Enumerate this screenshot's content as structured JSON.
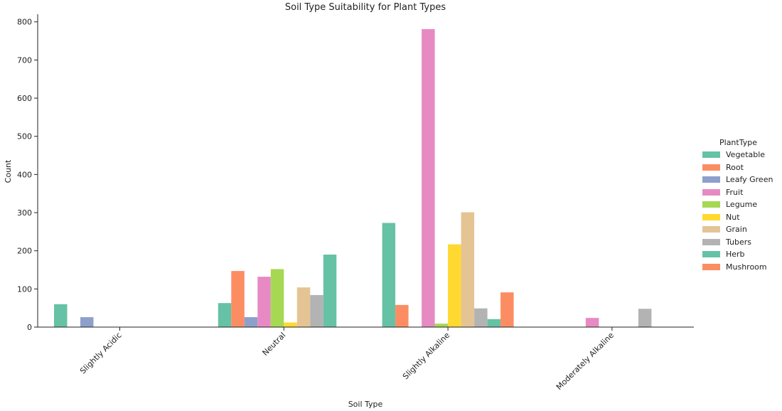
{
  "chart_data": {
    "type": "bar",
    "title": "Soil Type Suitability for Plant Types",
    "xlabel": "Soil Type",
    "ylabel": "Count",
    "ylim": [
      0,
      820
    ],
    "yticks": [
      0,
      100,
      200,
      300,
      400,
      500,
      600,
      700,
      800
    ],
    "categories": [
      "Slightly Acidic",
      "Neutral",
      "Slightly Alkaline",
      "Moderately Alkaline"
    ],
    "legend_title": "PlantType",
    "legend_position": "right",
    "series": [
      {
        "name": "Vegetable",
        "color": "#66c2a5",
        "values": [
          60,
          63,
          273,
          0
        ]
      },
      {
        "name": "Root",
        "color": "#fc8d62",
        "values": [
          0,
          147,
          58,
          0
        ]
      },
      {
        "name": "Leafy Green",
        "color": "#8da0cb",
        "values": [
          26,
          26,
          0,
          0
        ]
      },
      {
        "name": "Fruit",
        "color": "#e78ac3",
        "values": [
          0,
          132,
          781,
          24
        ]
      },
      {
        "name": "Legume",
        "color": "#a6d854",
        "values": [
          0,
          152,
          9,
          0
        ]
      },
      {
        "name": "Nut",
        "color": "#ffd92f",
        "values": [
          0,
          12,
          217,
          0
        ]
      },
      {
        "name": "Grain",
        "color": "#e5c494",
        "values": [
          0,
          104,
          301,
          0
        ]
      },
      {
        "name": "Tubers",
        "color": "#b3b3b3",
        "values": [
          0,
          84,
          49,
          48
        ]
      },
      {
        "name": "Herb",
        "color": "#66c2a5",
        "values": [
          0,
          190,
          21,
          0
        ]
      },
      {
        "name": "Mushroom",
        "color": "#fc8d62",
        "values": [
          0,
          0,
          91,
          0
        ]
      }
    ]
  }
}
